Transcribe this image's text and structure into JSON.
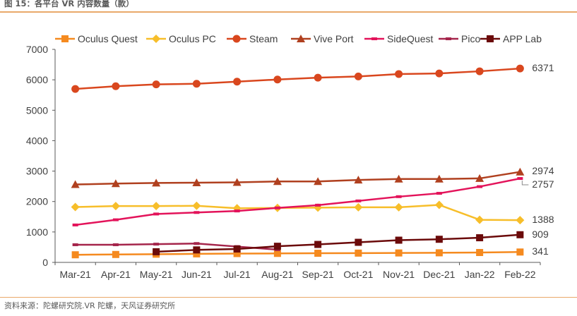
{
  "figure": {
    "title": "图 15：各平台 VR 内容数量（款）",
    "source": "资料来源：陀螺研究院.VR 陀螺，天风证券研究所"
  },
  "chart_data": {
    "type": "line",
    "categories": [
      "Mar-21",
      "Apr-21",
      "May-21",
      "Jun-21",
      "Jul-21",
      "Aug-21",
      "Sep-21",
      "Oct-21",
      "Nov-21",
      "Dec-21",
      "Jan-22",
      "Feb-22"
    ],
    "ylim": [
      0,
      7000
    ],
    "yticks": [
      0,
      1000,
      2000,
      3000,
      4000,
      5000,
      6000,
      7000
    ],
    "grid": false,
    "legend_position": "top",
    "series": [
      {
        "name": "Oculus Quest",
        "color": "#F58A1F",
        "marker": "square",
        "values": [
          250,
          260,
          270,
          280,
          290,
          295,
          300,
          305,
          310,
          315,
          325,
          341
        ]
      },
      {
        "name": "Oculus PC",
        "color": "#F7BE2A",
        "marker": "diamond",
        "values": [
          1820,
          1850,
          1850,
          1860,
          1780,
          1790,
          1800,
          1810,
          1810,
          1890,
          1400,
          1388
        ]
      },
      {
        "name": "Steam",
        "color": "#D9471E",
        "marker": "circle",
        "values": [
          5700,
          5790,
          5850,
          5870,
          5940,
          6010,
          6070,
          6110,
          6190,
          6210,
          6280,
          6371
        ]
      },
      {
        "name": "Vive Port",
        "color": "#B0401F",
        "marker": "triangle",
        "values": [
          2560,
          2590,
          2610,
          2620,
          2630,
          2660,
          2660,
          2710,
          2740,
          2740,
          2760,
          2974
        ]
      },
      {
        "name": "SideQuest",
        "color": "#E3135A",
        "marker": "dash",
        "values": [
          1230,
          1400,
          1590,
          1640,
          1690,
          1790,
          1880,
          2020,
          2160,
          2270,
          2490,
          2757
        ]
      },
      {
        "name": "Pico",
        "color": "#A5254B",
        "marker": "dash",
        "values": [
          580,
          580,
          600,
          620,
          520,
          420,
          null,
          null,
          null,
          null,
          null,
          null
        ]
      },
      {
        "name": "APP Lab",
        "color": "#6B0A0A",
        "marker": "square",
        "values": [
          null,
          null,
          350,
          410,
          440,
          530,
          590,
          660,
          730,
          760,
          810,
          909
        ]
      }
    ],
    "end_labels": [
      {
        "series": "Steam",
        "text": "6371"
      },
      {
        "series": "Vive Port",
        "text": "2974"
      },
      {
        "series": "SideQuest",
        "text": "2757"
      },
      {
        "series": "Oculus PC",
        "text": "1388"
      },
      {
        "series": "APP Lab",
        "text": "909"
      },
      {
        "series": "Oculus Quest",
        "text": "341"
      }
    ]
  }
}
